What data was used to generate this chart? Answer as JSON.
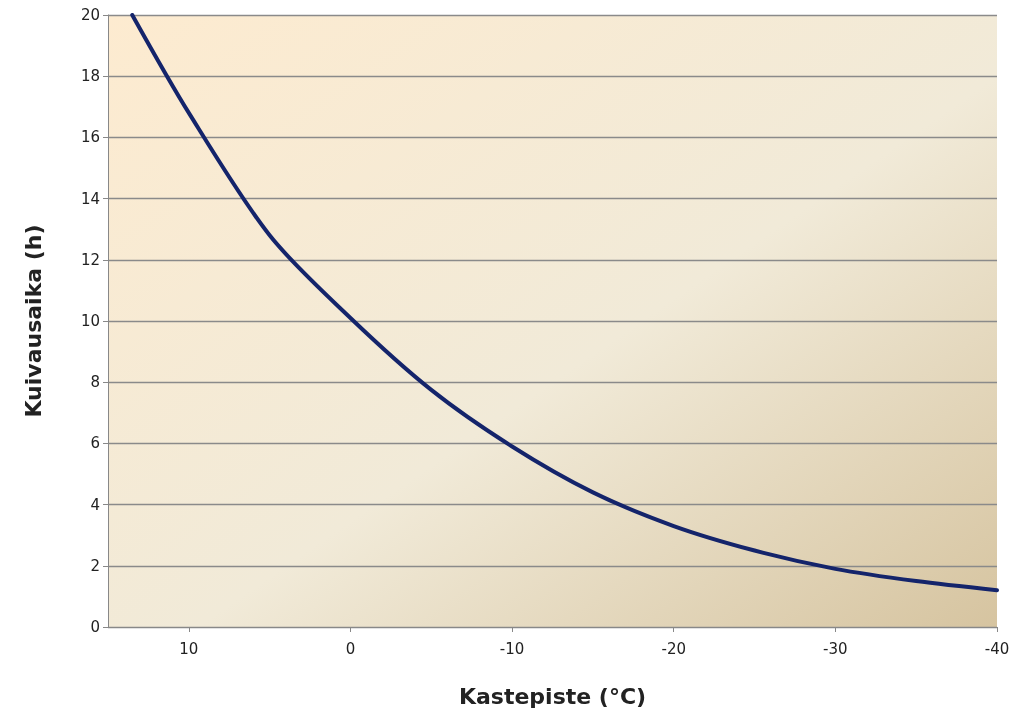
{
  "chart_data": {
    "type": "line",
    "xlabel": "Kastepiste (°C)",
    "ylabel": "Kuivausaika (h)",
    "x": [
      13.5,
      10,
      5,
      0,
      -5,
      -10,
      -15,
      -20,
      -25,
      -30,
      -35,
      -40
    ],
    "series": [
      {
        "color": "#14246b",
        "values": [
          20,
          16.8,
          12.8,
          10.1,
          7.75,
          5.9,
          4.4,
          3.3,
          2.5,
          1.9,
          1.5,
          1.2
        ]
      }
    ],
    "xlim": [
      15,
      -40
    ],
    "xticks": [
      10,
      0,
      -10,
      -20,
      -30,
      -40
    ],
    "ylim": [
      0,
      20
    ],
    "yticks": [
      0,
      2,
      4,
      6,
      8,
      10,
      12,
      14,
      16,
      18,
      20
    ],
    "grid": "y",
    "marker": "none",
    "line_style": "solid"
  }
}
